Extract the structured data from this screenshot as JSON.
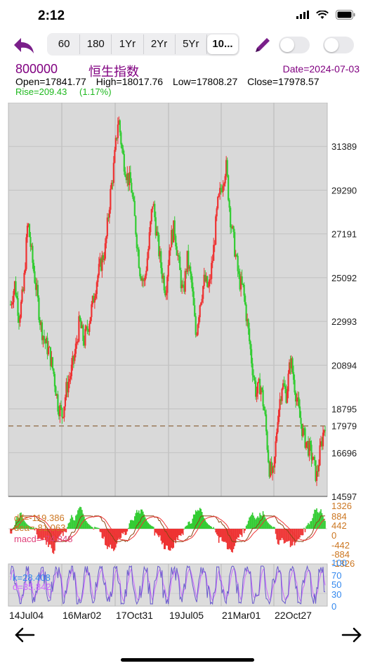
{
  "status": {
    "time": "2:12"
  },
  "toolbar": {
    "tabs": [
      {
        "label": "60"
      },
      {
        "label": "180"
      },
      {
        "label": "1Yr"
      },
      {
        "label": "2Yr"
      },
      {
        "label": "5Yr"
      },
      {
        "label": "10..."
      }
    ],
    "selected_tab": "10..."
  },
  "stock": {
    "symbol": "800000",
    "name": "恒生指数",
    "date": "Date=2024-07-03",
    "open": "Open=17841.77",
    "high": "High=18017.76",
    "low": "Low=17808.27",
    "close": "Close=17978.57",
    "rise": "Rise=209.43",
    "rise_pct": "(1.17%)"
  },
  "chart_data": {
    "type": "candlestick",
    "price_axis": {
      "ticks": [
        "31389",
        "29290",
        "27191",
        "25092",
        "22993",
        "20894",
        "18795",
        "17979",
        "16696",
        "14597"
      ],
      "range": [
        14597,
        33488
      ]
    },
    "current_line": 17979,
    "x_labels": [
      "14Jul04",
      "16Mar02",
      "17Oct31",
      "19Jul05",
      "21Mar01",
      "22Oct27"
    ],
    "macd": {
      "labels": {
        "dif": "dif=-119.386",
        "dea": "dea=-81.063",
        "macd": "macd=-74.848"
      },
      "ticks": [
        "1326",
        "884",
        "442",
        "0",
        "-442",
        "-884",
        "-1326"
      ]
    },
    "kdj": {
      "labels": {
        "k": "k=28.408",
        "d": "d=35.842"
      },
      "ticks": [
        "100",
        "70",
        "50",
        "30",
        "0"
      ]
    },
    "colors": {
      "up": "#ee3333",
      "down": "#33cc33",
      "dif": "#8b4513",
      "dea": "#ee3333",
      "k": "#6a5acd",
      "d": "#cc66ff",
      "axis_macd": "#cc7722",
      "axis_kdj": "#3388ee"
    },
    "price_path": [
      23800,
      24800,
      23200,
      24500,
      27800,
      26000,
      24500,
      22800,
      22000,
      21500,
      20500,
      19000,
      18500,
      19800,
      20500,
      21500,
      23000,
      22000,
      22800,
      23800,
      25000,
      25800,
      26500,
      28800,
      30500,
      32800,
      31000,
      30000,
      29500,
      27500,
      25500,
      24800,
      26500,
      28800,
      27000,
      25500,
      24500,
      26800,
      27500,
      25800,
      24200,
      26000,
      24800,
      22300,
      24000,
      25000,
      24500,
      26200,
      28500,
      29500,
      30500,
      28000,
      26500,
      25000,
      24500,
      22800,
      21000,
      19500,
      20000,
      18500,
      16000,
      15500,
      18500,
      20000,
      19500,
      21200,
      19800,
      18500,
      17500,
      17000,
      16500,
      15500,
      17000,
      18200
    ]
  },
  "nav": {
    "left": "back-arrow",
    "right": "forward-arrow"
  }
}
